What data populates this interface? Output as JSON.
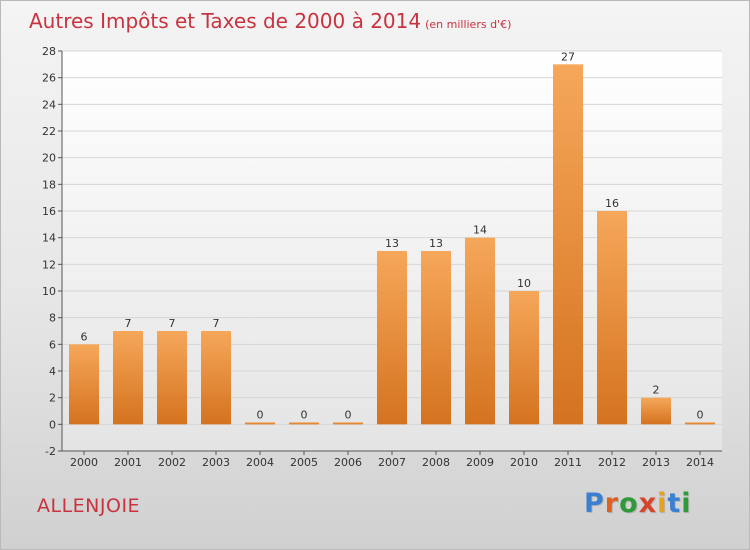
{
  "title": {
    "main": "Autres Impôts et Taxes de 2000 à 2014",
    "unit": "(en milliers d'€)"
  },
  "commune": "ALLENJOIE",
  "logo": {
    "text": "Proxiti",
    "letter_colors": [
      "#3b7fd0",
      "#e0611f",
      "#2f9a3a",
      "#d4452e",
      "#e8a11e",
      "#3b7fd0",
      "#2f9a3a"
    ]
  },
  "colors": {
    "title": "#c8333f",
    "bar_light": "#f6a75a",
    "bar_dark": "#d4731f",
    "grid": "#d6d6d6"
  },
  "chart_data": {
    "type": "bar",
    "title": "Autres Impôts et Taxes de 2000 à 2014",
    "subtitle": "(en milliers d'€)",
    "categories": [
      "2000",
      "2001",
      "2002",
      "2003",
      "2004",
      "2005",
      "2006",
      "2007",
      "2008",
      "2009",
      "2010",
      "2011",
      "2012",
      "2013",
      "2014"
    ],
    "values": [
      6,
      7,
      7,
      7,
      0,
      0,
      0,
      13,
      13,
      14,
      10,
      27,
      16,
      2,
      0
    ],
    "data_labels": [
      "6",
      "7",
      "7",
      "7",
      "0",
      "0",
      "0",
      "13",
      "13",
      "14",
      "10",
      "27",
      "16",
      "2",
      "0"
    ],
    "ylim": [
      -2,
      28
    ],
    "yticks": [
      -2,
      0,
      2,
      4,
      6,
      8,
      10,
      12,
      14,
      16,
      18,
      20,
      22,
      24,
      26,
      28
    ],
    "grid": true,
    "legend": "none"
  }
}
